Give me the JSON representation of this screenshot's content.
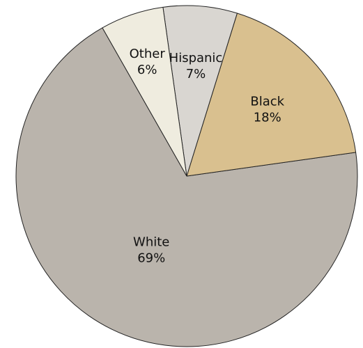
{
  "chart_data": {
    "type": "pie",
    "title": "",
    "slices": [
      {
        "name": "White",
        "label": "White",
        "value_label": "69%",
        "value": 69,
        "color": "#bab4ac"
      },
      {
        "name": "Black",
        "label": "Black",
        "value_label": "18%",
        "value": 18,
        "color": "#d9c08f"
      },
      {
        "name": "Hispanic",
        "label": "Hispanic",
        "value_label": "7%",
        "value": 7,
        "color": "#d9d6d1"
      },
      {
        "name": "Other",
        "label": "Other",
        "value_label": "6%",
        "value": 6,
        "color": "#efecdf"
      }
    ],
    "legend": "none",
    "labels_inside": true
  }
}
